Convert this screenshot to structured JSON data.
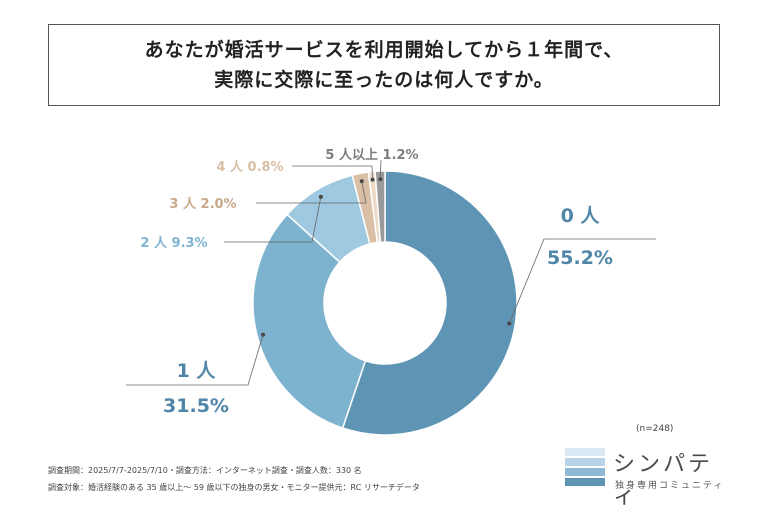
{
  "title": {
    "line1": "あなたが婚活サービスを利用開始してから１年間で、",
    "line2": "実際に交際に至ったのは何人ですか。"
  },
  "chart_data": {
    "type": "pie",
    "categories": [
      "0 人",
      "1 人",
      "2 人",
      "3 人",
      "4 人",
      "5 人以上"
    ],
    "values": [
      55.2,
      31.5,
      9.3,
      2.0,
      0.8,
      1.2
    ],
    "value_labels": [
      "55.2%",
      "31.5%",
      "9.3%",
      "2.0%",
      "0.8%",
      "1.2%"
    ],
    "colors": [
      "#5e95b5",
      "#7eb3cf",
      "#9ec9e0",
      "#d9bfa6",
      "#ecd9c6",
      "#9a9a9a"
    ],
    "donut": true
  },
  "sample_note": "(n=248)",
  "footer": {
    "line1": "調査期間：2025/7/7-2025/7/10・調査方法：インターネット調査・調査人数：330 名",
    "line2": "調査対象：婚活経験のある 35 歳以上～ 59 歳以下の独身の男女・モニター提供元：RC リサーチデータ"
  },
  "logo": {
    "name": "シンパティ",
    "subtitle": "独身専用コミュニティ",
    "bar_colors": [
      "#dbe9f4",
      "#b7d3e7",
      "#8fbad6",
      "#5e95b5"
    ]
  }
}
